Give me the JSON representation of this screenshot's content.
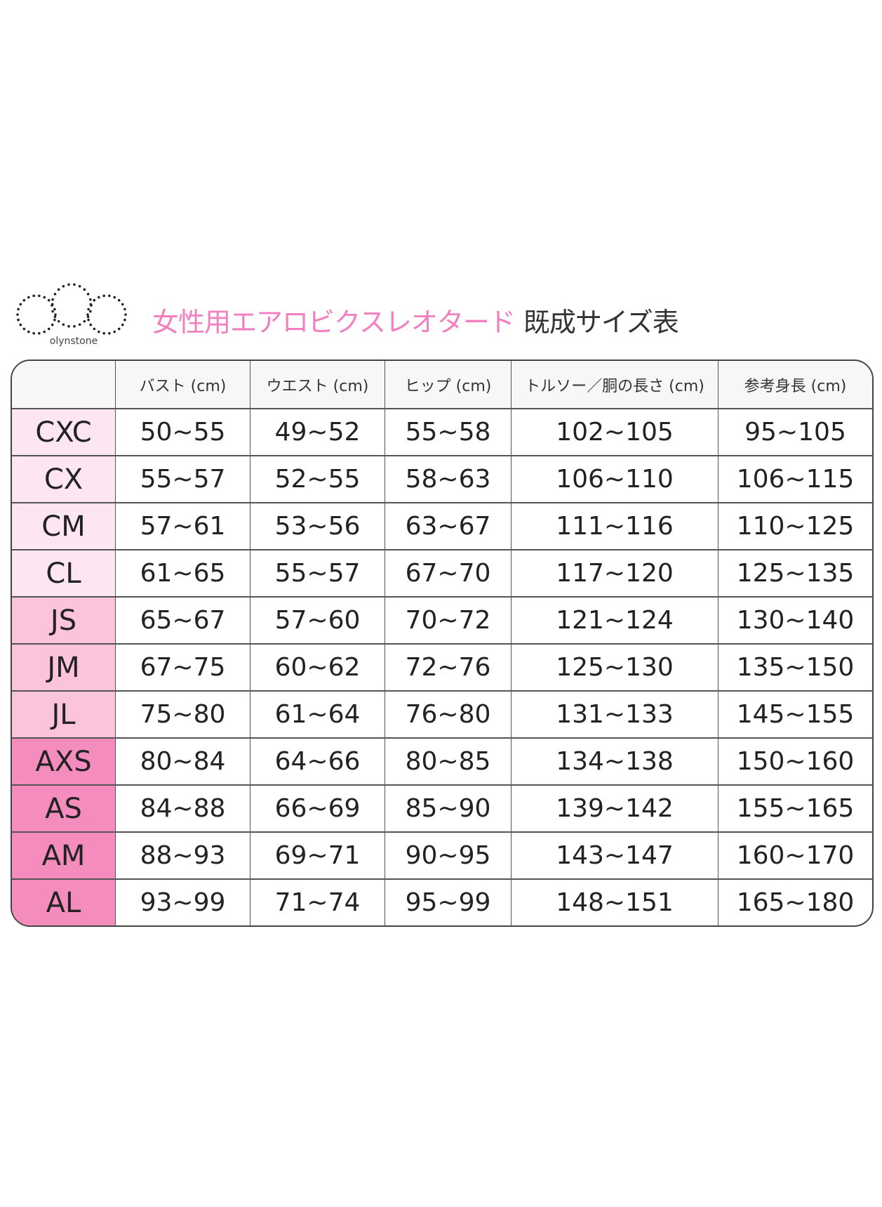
{
  "brand": "olynstone",
  "title": {
    "pink": "女性用エアロビクスレオタード",
    "dark": "既成サイズ表"
  },
  "colors": {
    "title_pink": "#f27fbf",
    "tier_c": "#fde6f2",
    "tier_j": "#fbc3dc",
    "tier_a": "#f48cbd"
  },
  "table": {
    "headers": [
      "",
      "バスト (cm)",
      "ウエスト (cm)",
      "ヒップ (cm)",
      "トルソー／胴の長さ (cm)",
      "参考身長 (cm)"
    ],
    "rows": [
      {
        "size": "CXC",
        "tier": "c",
        "cells": [
          "50~55",
          "49~52",
          "55~58",
          "102~105",
          "95~105"
        ]
      },
      {
        "size": "CX",
        "tier": "c",
        "cells": [
          "55~57",
          "52~55",
          "58~63",
          "106~110",
          "106~115"
        ]
      },
      {
        "size": "CM",
        "tier": "c",
        "cells": [
          "57~61",
          "53~56",
          "63~67",
          "111~116",
          "110~125"
        ]
      },
      {
        "size": "CL",
        "tier": "c",
        "cells": [
          "61~65",
          "55~57",
          "67~70",
          "117~120",
          "125~135"
        ]
      },
      {
        "size": "JS",
        "tier": "j",
        "cells": [
          "65~67",
          "57~60",
          "70~72",
          "121~124",
          "130~140"
        ]
      },
      {
        "size": "JM",
        "tier": "j",
        "cells": [
          "67~75",
          "60~62",
          "72~76",
          "125~130",
          "135~150"
        ]
      },
      {
        "size": "JL",
        "tier": "j",
        "cells": [
          "75~80",
          "61~64",
          "76~80",
          "131~133",
          "145~155"
        ]
      },
      {
        "size": "AXS",
        "tier": "a",
        "cells": [
          "80~84",
          "64~66",
          "80~85",
          "134~138",
          "150~160"
        ]
      },
      {
        "size": "AS",
        "tier": "a",
        "cells": [
          "84~88",
          "66~69",
          "85~90",
          "139~142",
          "155~165"
        ]
      },
      {
        "size": "AM",
        "tier": "a",
        "cells": [
          "88~93",
          "69~71",
          "90~95",
          "143~147",
          "160~170"
        ]
      },
      {
        "size": "AL",
        "tier": "a",
        "cells": [
          "93~99",
          "71~74",
          "95~99",
          "148~151",
          "165~180"
        ]
      }
    ]
  }
}
